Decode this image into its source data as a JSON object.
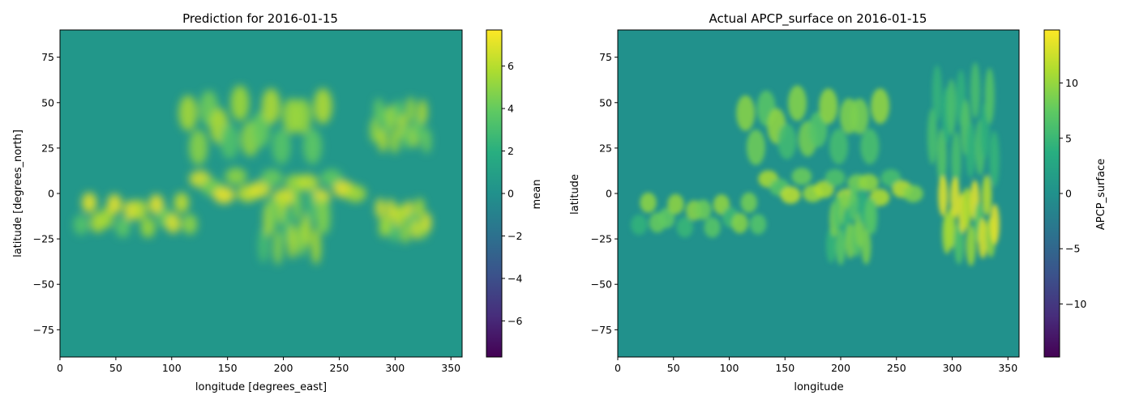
{
  "chart_data": [
    {
      "type": "heatmap",
      "title": "Prediction for 2016-01-15",
      "xlabel": "longitude [degrees_east]",
      "ylabel": "latitude [degrees_north]",
      "xlim": [
        0,
        360
      ],
      "ylim": [
        -90,
        90
      ],
      "x_ticks": [
        0,
        50,
        100,
        150,
        200,
        250,
        300,
        350
      ],
      "y_ticks": [
        75,
        50,
        25,
        0,
        -25,
        -50,
        -75
      ],
      "colorbar": {
        "label": "mean",
        "colormap": "viridis",
        "range": [
          -7.7,
          7.7
        ],
        "ticks": [
          6,
          4,
          2,
          0,
          -2,
          -4,
          -6
        ],
        "tick_labels": [
          "6",
          "4",
          "2",
          "0",
          "−2",
          "−4",
          "−6"
        ]
      },
      "background_value": 0.4,
      "features": [
        {
          "name": "itcz-south-band",
          "lon": [
            15,
            120
          ],
          "lat": [
            -22,
            -2
          ],
          "peak": 7.5
        },
        {
          "name": "itcz-central-band",
          "lon": [
            120,
            270
          ],
          "lat": [
            -5,
            12
          ],
          "peak": 7.5
        },
        {
          "name": "north-mid-latitude-band",
          "lon": [
            110,
            240
          ],
          "lat": [
            20,
            55
          ],
          "peak": 6.0
        },
        {
          "name": "south-pacific-convergence",
          "lon": [
            180,
            240
          ],
          "lat": [
            -35,
            0
          ],
          "peak": 6.0
        },
        {
          "name": "north-atlantic-band",
          "lon": [
            280,
            330
          ],
          "lat": [
            25,
            50
          ],
          "peak": 6.0
        },
        {
          "name": "south-atlantic-band",
          "lon": [
            285,
            330
          ],
          "lat": [
            -25,
            -5
          ],
          "peak": 7.0
        }
      ]
    },
    {
      "type": "heatmap",
      "title": "Actual APCP_surface on 2016-01-15",
      "xlabel": "longitude",
      "ylabel": "latitude",
      "xlim": [
        0,
        360
      ],
      "ylim": [
        -90,
        90
      ],
      "x_ticks": [
        0,
        50,
        100,
        150,
        200,
        250,
        300,
        350
      ],
      "y_ticks": [
        75,
        50,
        25,
        0,
        -25,
        -50,
        -75
      ],
      "colorbar": {
        "label": "APCP_surface",
        "colormap": "viridis",
        "range": [
          -14.8,
          14.8
        ],
        "ticks": [
          10,
          5,
          0,
          -5,
          -10
        ],
        "tick_labels": [
          "10",
          "5",
          "0",
          "−5",
          "−10"
        ]
      },
      "background_value": 0.0,
      "features": [
        {
          "name": "itcz-south-band",
          "lon": [
            15,
            130
          ],
          "lat": [
            -22,
            -2
          ],
          "peak": 10.0
        },
        {
          "name": "itcz-central-band",
          "lon": [
            130,
            270
          ],
          "lat": [
            -5,
            12
          ],
          "peak": 12.0
        },
        {
          "name": "north-mid-latitude-band",
          "lon": [
            110,
            240
          ],
          "lat": [
            20,
            55
          ],
          "peak": 10.0
        },
        {
          "name": "south-pacific-convergence",
          "lon": [
            190,
            230
          ],
          "lat": [
            -35,
            0
          ],
          "peak": 9.0
        },
        {
          "name": "north-atlantic-band",
          "lon": [
            280,
            340
          ],
          "lat": [
            10,
            65
          ],
          "peak": 7.0
        },
        {
          "name": "south-atlantic-band",
          "lon": [
            290,
            340
          ],
          "lat": [
            -35,
            5
          ],
          "peak": 14.0
        }
      ]
    }
  ]
}
